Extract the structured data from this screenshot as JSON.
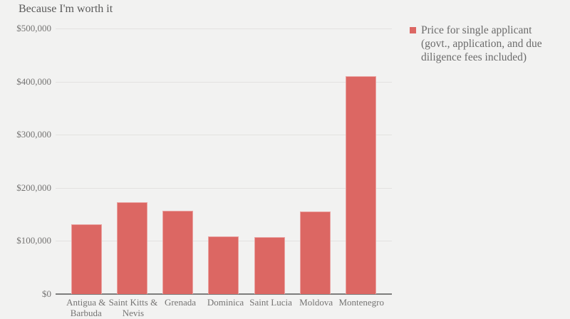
{
  "chart_data": {
    "type": "bar",
    "title": "Because I'm worth it",
    "categories": [
      "Antigua & Barbuda",
      "Saint Kitts & Nevis",
      "Grenada",
      "Dominica",
      "Saint Lucia",
      "Moldova",
      "Montenegro"
    ],
    "tick_labels": [
      "Antigua &\nBarbuda",
      "Saint Kitts &\nNevis",
      "Grenada",
      "Dominica",
      "Saint Lucia",
      "Moldova",
      "Montenegro"
    ],
    "series": [
      {
        "name": "Price for single applicant (govt., application, and due diligence fees included)",
        "values": [
          131000,
          173000,
          157000,
          109000,
          107000,
          156000,
          410000
        ]
      }
    ],
    "xlabel": "",
    "ylabel": "",
    "ylim": [
      0,
      500000
    ],
    "yticks": [
      0,
      100000,
      200000,
      300000,
      400000,
      500000
    ],
    "ytick_labels": [
      "$0",
      "$100,000",
      "$200,000",
      "$300,000",
      "$400,000",
      "$500,000"
    ],
    "grid": true,
    "legend_position": "right"
  },
  "legend": {
    "text_display": "Price for single applicant\n(govt., application, and due\ndiligence fees included)"
  },
  "colors": {
    "bar": "#dc6763",
    "background": "#f2f2f1",
    "gridline": "#e3e2e0",
    "axis_line": "#7d7d7c",
    "tick_text": "#757473",
    "title_text": "#5a5a5a",
    "legend_text": "#6b6b6b"
  }
}
